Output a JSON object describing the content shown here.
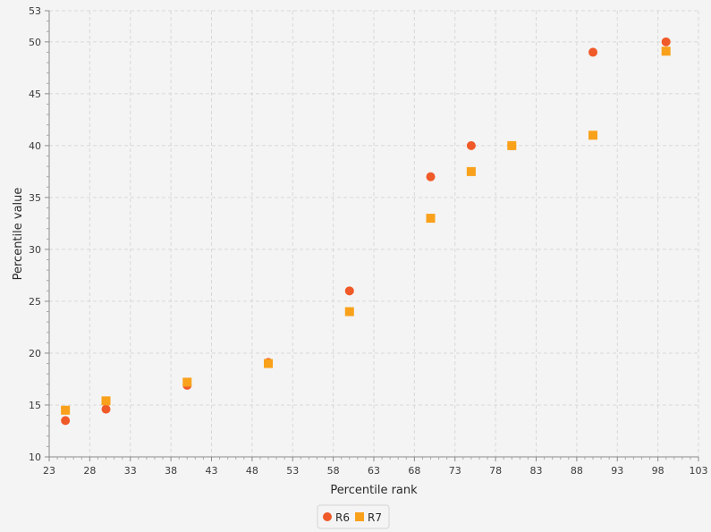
{
  "chart_data": {
    "type": "scatter",
    "title": "",
    "xlabel": "Percentile rank",
    "ylabel": "Percentile value",
    "xlim": [
      23,
      103
    ],
    "ylim": [
      10,
      53
    ],
    "xticks": [
      23,
      28,
      33,
      38,
      43,
      48,
      53,
      58,
      63,
      68,
      73,
      78,
      83,
      88,
      93,
      98,
      103
    ],
    "yticks": [
      10,
      15,
      20,
      25,
      30,
      35,
      40,
      45,
      50,
      53
    ],
    "grid": true,
    "legend": "bottom",
    "series": [
      {
        "name": "R6",
        "marker": "circle",
        "color": "#f05a28",
        "x": [
          25,
          30,
          40,
          50,
          60,
          70,
          75,
          80,
          90,
          99
        ],
        "y": [
          13.5,
          14.6,
          16.9,
          19.1,
          26.0,
          37.0,
          40.0,
          40.0,
          49.0,
          50.0
        ]
      },
      {
        "name": "R7",
        "marker": "square",
        "color": "#f9a11b",
        "x": [
          25,
          30,
          40,
          50,
          60,
          70,
          75,
          80,
          90,
          99
        ],
        "y": [
          14.5,
          15.4,
          17.2,
          19.0,
          24.0,
          33.0,
          37.5,
          40.0,
          41.0,
          49.1
        ]
      }
    ]
  }
}
